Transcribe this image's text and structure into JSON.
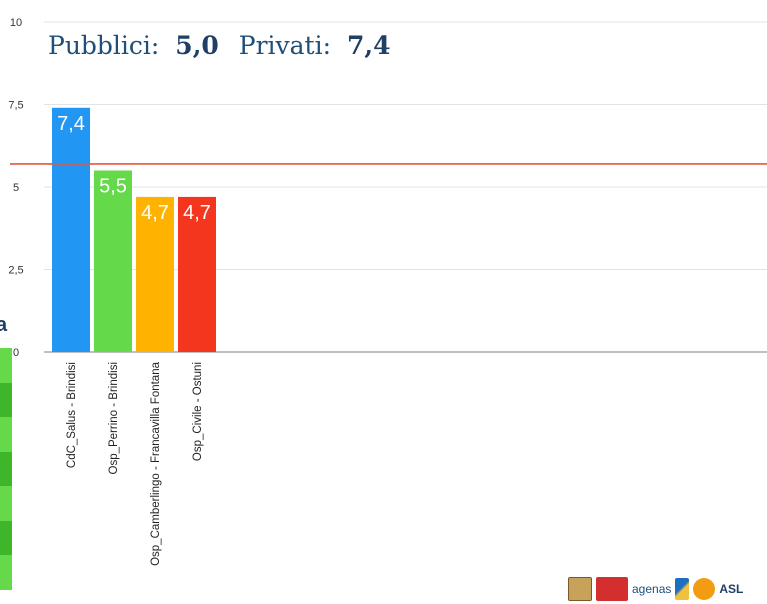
{
  "chart_data": {
    "type": "bar",
    "title": "",
    "xlabel": "",
    "ylabel": "",
    "ylim": [
      0,
      10
    ],
    "yticks": [
      "0",
      "2,5",
      "5",
      "7,5",
      "10"
    ],
    "grid": true,
    "categories": [
      "CdC_Salus - Brindisi",
      "Osp_Perrino - Brindisi",
      "Osp_Camberlingo - Francavilla Fontana",
      "Osp_Civile - Ostuni"
    ],
    "values": [
      7.4,
      5.5,
      4.7,
      4.7
    ],
    "value_labels": [
      "7,4",
      "5,5",
      "4,7",
      "4,7"
    ],
    "bar_colors": [
      "#2196f3",
      "#64d94a",
      "#ffb300",
      "#f4361e"
    ],
    "reference_line": {
      "value": 5.7,
      "color": "#e5553f"
    }
  },
  "summary": {
    "pubblici_label": "Pubblici:",
    "pubblici_value": "5,0",
    "privati_label": "Privati:",
    "privati_value": "7,4"
  },
  "left_panel": {
    "letter": "a",
    "band_colors": [
      "#66d94a",
      "#3fb52a",
      "#66d94a",
      "#3fb52a",
      "#66d94a",
      "#3fb52a",
      "#66d94a"
    ]
  },
  "logos": {
    "agenas_text": "agenas",
    "asl_text": "ASL",
    "icons": [
      "crest-logo",
      "red-logo",
      "agenas-x-logo",
      "orange-circle-logo"
    ]
  }
}
